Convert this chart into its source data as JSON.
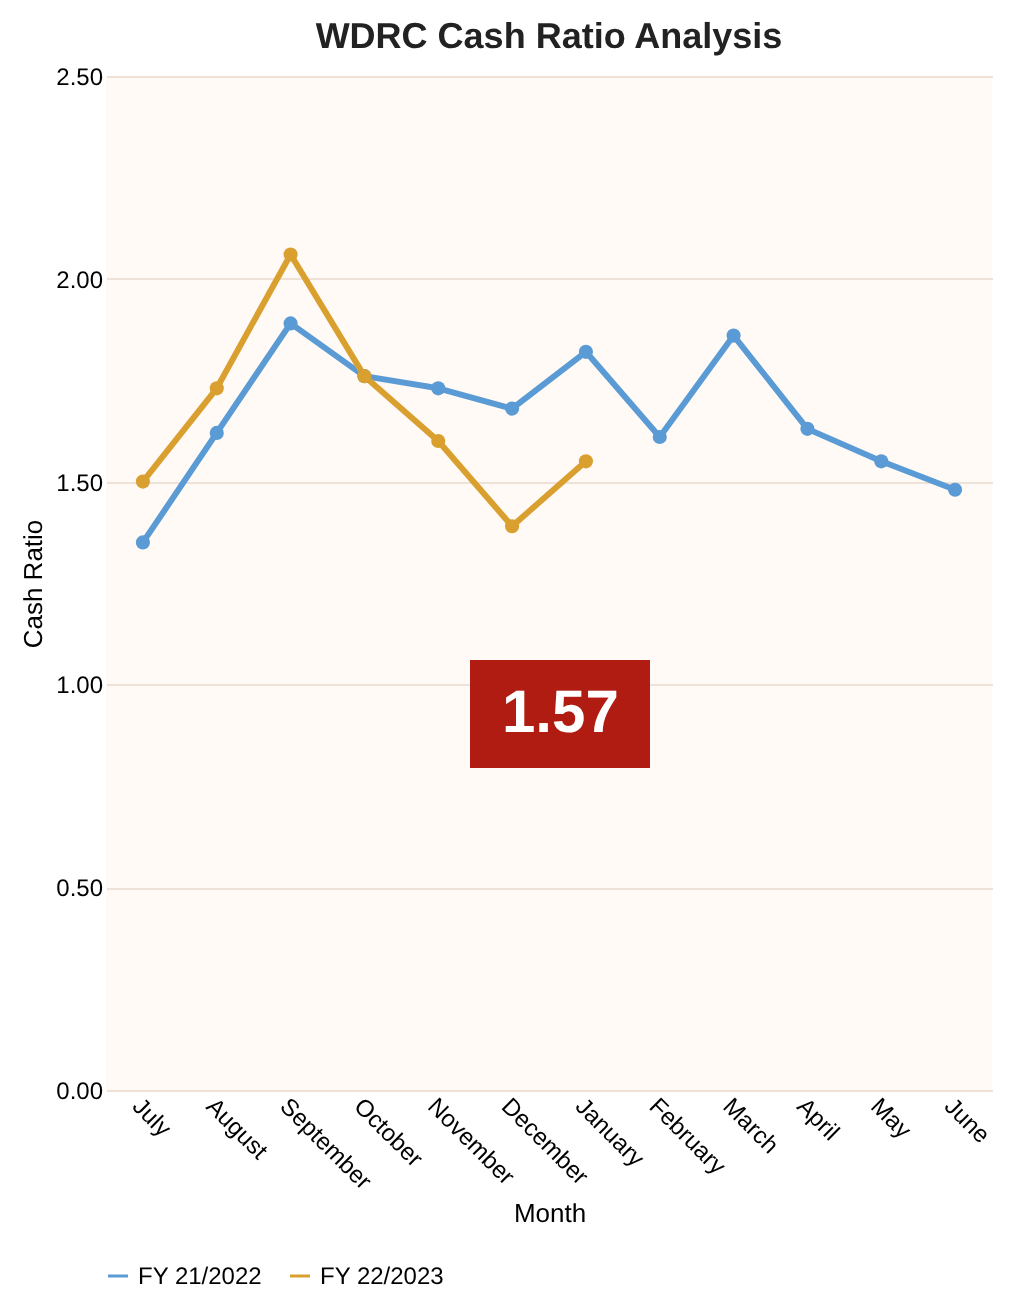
{
  "chart_data": {
    "type": "line",
    "title": "WDRC Cash Ratio Analysis",
    "xlabel": "Month",
    "ylabel": "Cash Ratio",
    "categories": [
      "July",
      "August",
      "September",
      "October",
      "November",
      "December",
      "January",
      "February",
      "March",
      "April",
      "May",
      "June"
    ],
    "series": [
      {
        "name": "FY 21/2022",
        "color": "#5b9bd5",
        "values": [
          1.35,
          1.62,
          1.89,
          1.76,
          1.73,
          1.68,
          1.82,
          1.61,
          1.86,
          1.63,
          1.55,
          1.48
        ]
      },
      {
        "name": "FY 22/2023",
        "color": "#d9a030",
        "values": [
          1.5,
          1.73,
          2.06,
          1.76,
          1.6,
          1.39,
          1.55,
          null,
          null,
          null,
          null,
          null
        ]
      }
    ],
    "ylim": [
      0,
      2.5
    ],
    "yticks": [
      {
        "value": 0,
        "label": "0.00"
      },
      {
        "value": 0.5,
        "label": "0.50"
      },
      {
        "value": 1,
        "label": "1.00"
      },
      {
        "value": 1.5,
        "label": "1.50"
      },
      {
        "value": 2,
        "label": "2.00"
      },
      {
        "value": 2.5,
        "label": "2.50"
      }
    ],
    "annotations": [
      "1.57"
    ],
    "grid": "y",
    "legend": "bottom",
    "marker": "circle",
    "line_style": "solid"
  }
}
